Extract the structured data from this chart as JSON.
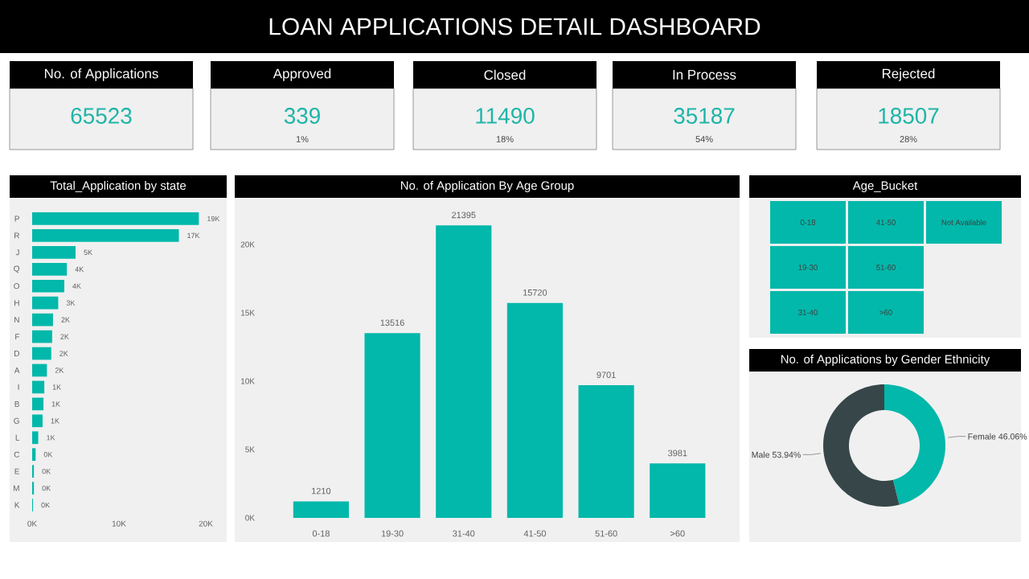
{
  "chart_data": [
    {
      "type": "other",
      "title": "LOAN APPLICATIONS DETAIL DASHBOARD"
    },
    {
      "type": "other",
      "title": "No. of Applications",
      "values": [
        65523
      ],
      "data_labels": true
    },
    {
      "type": "other",
      "title": "Approved",
      "values": [
        339
      ],
      "data_labels": true,
      "annotations": [
        "1%"
      ]
    },
    {
      "type": "other",
      "title": "Closed",
      "values": [
        11490
      ],
      "data_labels": true,
      "annotations": [
        "18%"
      ]
    },
    {
      "type": "other",
      "title": "In Process",
      "values": [
        35187
      ],
      "data_labels": true,
      "annotations": [
        "54%"
      ]
    },
    {
      "type": "other",
      "title": "Rejected",
      "values": [
        18507
      ],
      "data_labels": true,
      "annotations": [
        "28%"
      ]
    },
    {
      "type": "bar",
      "title": "Total_Application by state",
      "orientation": "horizontal",
      "color": "#01b8aa",
      "categories": [
        "P",
        "R",
        "J",
        "Q",
        "O",
        "H",
        "N",
        "F",
        "D",
        "A",
        "I",
        "B",
        "G",
        "L",
        "C",
        "E",
        "M",
        "K"
      ],
      "values": [
        19200,
        16900,
        5000,
        4000,
        3700,
        3000,
        2400,
        2300,
        2200,
        1700,
        1400,
        1300,
        1200,
        700,
        400,
        200,
        200,
        100
      ],
      "value_labels": [
        "19K",
        "17K",
        "5K",
        "4K",
        "4K",
        "3K",
        "2K",
        "2K",
        "2K",
        "2K",
        "1K",
        "1K",
        "1K",
        "1K",
        "0K",
        "0K",
        "0K",
        "0K"
      ],
      "xlim": [
        0,
        20000
      ],
      "xticks": [
        {
          "value": 0,
          "label": "0K"
        },
        {
          "value": 10000,
          "label": "10K"
        },
        {
          "value": 20000,
          "label": "20K"
        }
      ]
    },
    {
      "type": "bar",
      "title": "No. of Application By Age Group",
      "color": "#01b8aa",
      "categories": [
        "0-18",
        "19-30",
        "31-40",
        "41-50",
        "51-60",
        ">60"
      ],
      "values": [
        1210,
        13516,
        21395,
        15720,
        9701,
        3981
      ],
      "data_labels": true,
      "ylim": [
        0,
        23000
      ],
      "yticks": [
        {
          "value": 0,
          "label": "0K"
        },
        {
          "value": 5000,
          "label": "5K"
        },
        {
          "value": 10000,
          "label": "10K"
        },
        {
          "value": 15000,
          "label": "15K"
        },
        {
          "value": 20000,
          "label": "20K"
        }
      ]
    },
    {
      "type": "other",
      "title": "Age_Bucket",
      "color": "#01b8aa",
      "categories": [
        "0-18",
        "19-30",
        "31-40",
        "41-50",
        "51-60",
        ">60",
        "Not Available"
      ]
    },
    {
      "type": "donut",
      "title": "No. of Applications by Gender Ethnicity",
      "categories": [
        "Female",
        "Male"
      ],
      "values": [
        46.06,
        53.94
      ],
      "colors": [
        "#01b8aa",
        "#374649"
      ],
      "value_labels": [
        "46.06%",
        "53.94%"
      ]
    }
  ]
}
